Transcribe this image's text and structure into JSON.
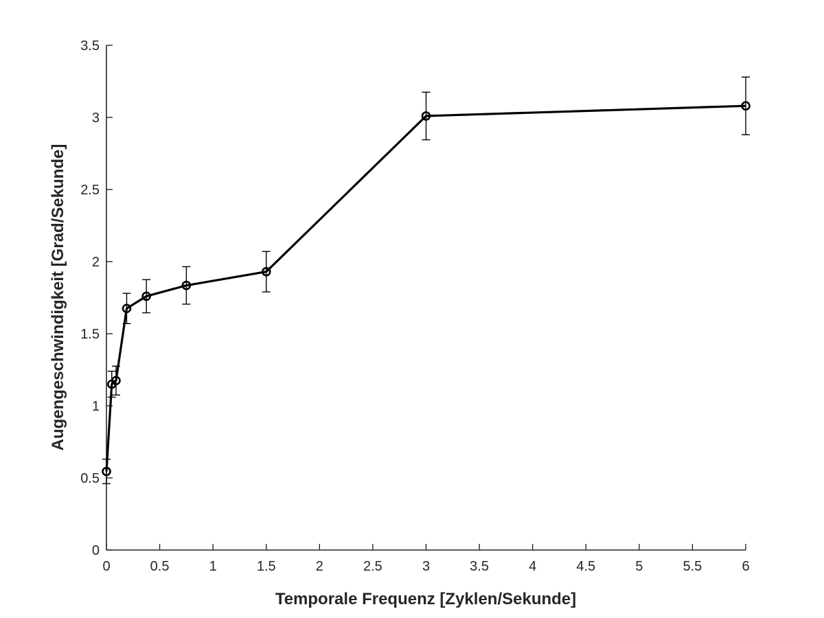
{
  "chart_data": {
    "type": "line",
    "xlabel": "Temporale Frequenz [Zyklen/Sekunde]",
    "ylabel": "Augengeschwindigkeit [Grad/Sekunde]",
    "xlim": [
      0,
      6
    ],
    "ylim": [
      0,
      3.5
    ],
    "x_ticks": [
      0,
      0.5,
      1,
      1.5,
      2,
      2.5,
      3,
      3.5,
      4,
      4.5,
      5,
      5.5,
      6
    ],
    "x_tick_labels": [
      "0",
      "0.5",
      "1",
      "1.5",
      "2",
      "2.5",
      "3",
      "3.5",
      "4",
      "4.5",
      "5",
      "5.5",
      "6"
    ],
    "y_ticks": [
      0,
      0.5,
      1,
      1.5,
      2,
      2.5,
      3,
      3.5
    ],
    "y_tick_labels": [
      "0",
      "0.5",
      "1",
      "1.5",
      "2",
      "2.5",
      "3",
      "3.5"
    ],
    "grid": false,
    "legend": "none",
    "line_color": "#000000",
    "x_axis_scale_note": "segmented",
    "series": [
      {
        "x": [
          0,
          0.05,
          0.09,
          0.19,
          0.375,
          0.75,
          1.5,
          3,
          6
        ],
        "y": [
          0.545,
          1.15,
          1.175,
          1.675,
          1.76,
          1.835,
          1.93,
          3.01,
          3.08
        ],
        "err": [
          0.085,
          0.09,
          0.1,
          0.105,
          0.115,
          0.13,
          0.14,
          0.165,
          0.2
        ]
      }
    ]
  }
}
